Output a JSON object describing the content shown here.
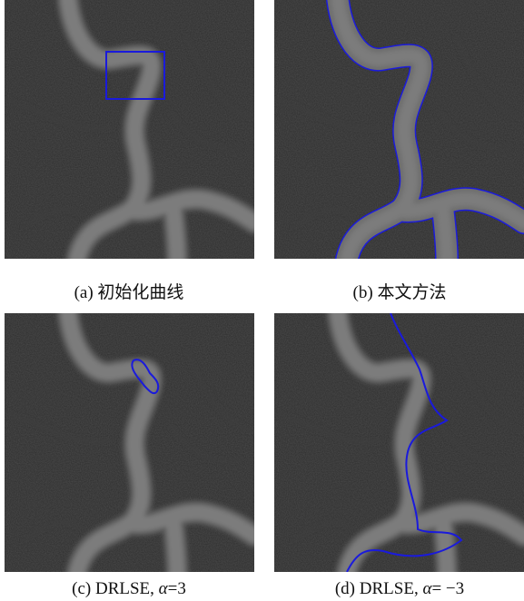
{
  "panels": [
    {
      "label": "(a)",
      "caption": "初始化曲线"
    },
    {
      "label": "(b)",
      "caption": "本文方法"
    },
    {
      "label": "(c)",
      "caption": "DRLSE,",
      "symbol": "α",
      "relation": "=3"
    },
    {
      "label": "(d)",
      "caption": "DRLSE,",
      "symbol": "α",
      "relation": "= −3"
    }
  ]
}
